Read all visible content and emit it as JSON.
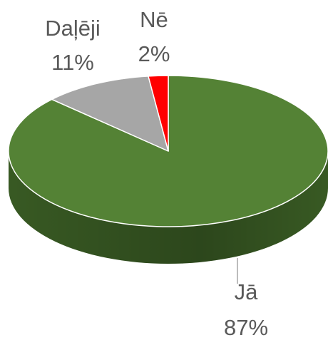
{
  "chart_data": {
    "type": "pie",
    "categories": [
      "Jā",
      "Daļēji",
      "Nē"
    ],
    "values": [
      87,
      11,
      2
    ],
    "value_labels": [
      "87%",
      "11%",
      "2%"
    ],
    "colors": [
      "#548235",
      "#a6a6a6",
      "#ff0000"
    ],
    "side_colors": [
      "#3b5e25",
      "#7f7f7f",
      "#b00000"
    ]
  }
}
